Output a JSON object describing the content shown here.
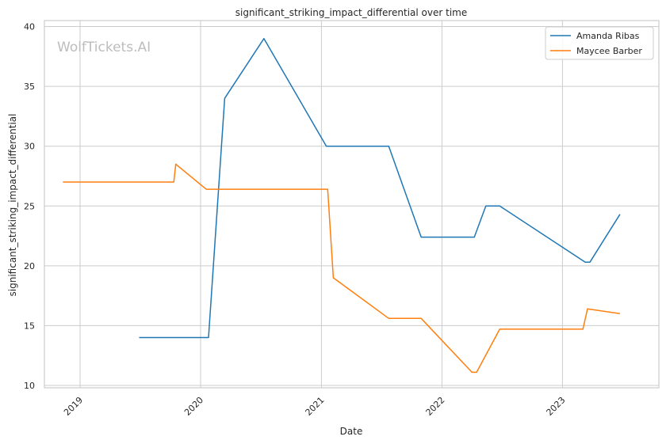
{
  "chart_data": {
    "type": "line",
    "title": "significant_striking_impact_differential over time",
    "xlabel": "Date",
    "ylabel": "significant_striking_impact_differential",
    "watermark": "WolfTickets.AI",
    "xlim": [
      "2018-09-15",
      "2023-10-20"
    ],
    "ylim": [
      9.8,
      40.5
    ],
    "x_ticks": [
      "2019-01-01",
      "2020-01-01",
      "2021-01-01",
      "2022-01-01",
      "2023-01-01"
    ],
    "x_tick_labels": [
      "2019",
      "2020",
      "2021",
      "2022",
      "2023"
    ],
    "y_ticks": [
      10,
      15,
      20,
      25,
      30,
      35,
      40
    ],
    "y_tick_labels": [
      "10",
      "15",
      "20",
      "25",
      "30",
      "35",
      "40"
    ],
    "grid": true,
    "legend_position": "top-right",
    "series": [
      {
        "name": "Amanda Ribas",
        "color": "#1f77b4",
        "points": [
          [
            "2019-06-29",
            14.0
          ],
          [
            "2020-01-25",
            14.0
          ],
          [
            "2020-03-14",
            34.0
          ],
          [
            "2020-07-11",
            39.0
          ],
          [
            "2021-01-16",
            30.0
          ],
          [
            "2021-07-24",
            30.0
          ],
          [
            "2021-10-30",
            22.4
          ],
          [
            "2022-04-09",
            22.4
          ],
          [
            "2022-05-14",
            25.0
          ],
          [
            "2022-06-25",
            25.0
          ],
          [
            "2023-03-11",
            20.3
          ],
          [
            "2023-03-25",
            20.3
          ],
          [
            "2023-06-24",
            24.3
          ]
        ]
      },
      {
        "name": "Maycee Barber",
        "color": "#ff7f0e",
        "points": [
          [
            "2018-11-10",
            27.0
          ],
          [
            "2019-10-12",
            27.0
          ],
          [
            "2019-10-18",
            28.5
          ],
          [
            "2020-01-18",
            26.4
          ],
          [
            "2021-01-20",
            26.4
          ],
          [
            "2021-02-06",
            19.0
          ],
          [
            "2021-07-24",
            15.6
          ],
          [
            "2021-10-30",
            15.6
          ],
          [
            "2022-04-02",
            11.1
          ],
          [
            "2022-04-16",
            11.1
          ],
          [
            "2022-06-25",
            14.7
          ],
          [
            "2023-03-04",
            14.7
          ],
          [
            "2023-03-18",
            16.4
          ],
          [
            "2023-06-24",
            16.0
          ]
        ]
      }
    ]
  }
}
